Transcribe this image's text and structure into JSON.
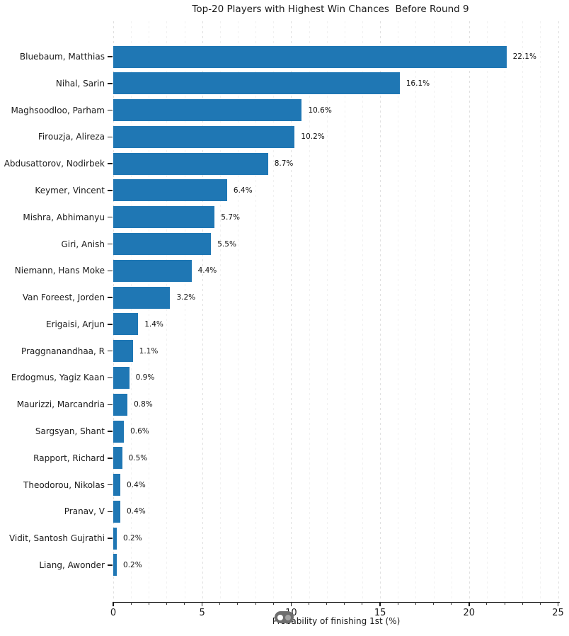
{
  "chart_data": {
    "type": "bar",
    "orientation": "horizontal",
    "title": "Top-20 Players with Highest Win Chances  Before Round 9",
    "xlabel": "Probability of finishing 1st (%)",
    "categories": [
      "Bluebaum, Matthias",
      "Nihal, Sarin",
      "Maghsoodloo, Parham",
      "Firouzja, Alireza",
      "Abdusattorov, Nodirbek",
      "Keymer, Vincent",
      "Mishra, Abhimanyu",
      "Giri, Anish",
      "Niemann, Hans Moke",
      "Van Foreest, Jorden",
      "Erigaisi, Arjun",
      "Praggnanandhaa, R",
      "Erdogmus, Yagiz Kaan",
      "Maurizzi, Marcandria",
      "Sargsyan, Shant",
      "Rapport, Richard",
      "Theodorou, Nikolas",
      "Pranav, V",
      "Vidit, Santosh Gujrathi",
      "Liang, Awonder"
    ],
    "values": [
      22.1,
      16.1,
      10.6,
      10.2,
      8.7,
      6.4,
      5.7,
      5.5,
      4.4,
      3.2,
      1.4,
      1.1,
      0.9,
      0.8,
      0.6,
      0.5,
      0.4,
      0.4,
      0.2,
      0.2
    ],
    "value_labels": [
      "22.1%",
      "16.1%",
      "10.6%",
      "10.2%",
      "8.7%",
      "6.4%",
      "5.7%",
      "5.5%",
      "4.4%",
      "3.2%",
      "1.4%",
      "1.1%",
      "0.9%",
      "0.8%",
      "0.6%",
      "0.5%",
      "0.4%",
      "0.4%",
      "0.2%",
      "0.2%"
    ],
    "xlim": [
      0,
      25
    ],
    "x_major_ticks": [
      0,
      5,
      10,
      15,
      20,
      25
    ],
    "x_major_tick_labels": [
      "0",
      "5",
      "10",
      "15",
      "20",
      "25"
    ],
    "x_minor_tick_step": 1,
    "grid": "vertical-dashed",
    "legend": "none",
    "bar_color": "#1f77b4"
  },
  "overlay": {
    "pill_color": "#6e6e6e",
    "pill_dot_left_color": "#ffffff",
    "pill_dot_right_color": "#a3a3a3"
  }
}
